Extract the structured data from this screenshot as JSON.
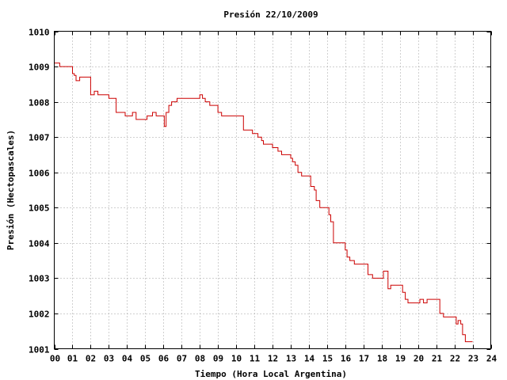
{
  "chart_data": {
    "type": "line",
    "title": "Presión 22/10/2009",
    "xlabel": "Tiempo (Hora Local Argentina)",
    "ylabel": "Presión (Hectopascales)",
    "xlim": [
      0,
      24
    ],
    "ylim": [
      1001,
      1010
    ],
    "x_tick_labels": [
      "00",
      "01",
      "02",
      "03",
      "04",
      "05",
      "06",
      "07",
      "08",
      "09",
      "10",
      "11",
      "12",
      "13",
      "14",
      "15",
      "16",
      "17",
      "18",
      "19",
      "20",
      "21",
      "22",
      "23",
      "24"
    ],
    "y_tick_labels": [
      "1001",
      "1002",
      "1003",
      "1004",
      "1005",
      "1006",
      "1007",
      "1008",
      "1009",
      "1010"
    ],
    "grid": true,
    "line_color": "#cc0000",
    "series": [
      {
        "step": true,
        "x": [
          0.0,
          0.3,
          0.4,
          0.9,
          1.0,
          1.1,
          1.2,
          1.4,
          1.5,
          2.0,
          2.2,
          2.4,
          2.5,
          3.0,
          3.4,
          3.9,
          4.3,
          4.5,
          5.0,
          5.1,
          5.4,
          5.6,
          5.75,
          6.05,
          6.15,
          6.3,
          6.45,
          6.75,
          7.4,
          8.0,
          8.15,
          8.3,
          8.55,
          9.0,
          9.2,
          9.45,
          10.0,
          10.4,
          10.9,
          11.2,
          11.4,
          11.5,
          12.0,
          12.3,
          12.5,
          13.0,
          13.1,
          13.25,
          13.4,
          13.6,
          14.0,
          14.1,
          14.3,
          14.4,
          14.6,
          15.0,
          15.1,
          15.2,
          15.35,
          15.6,
          16.0,
          16.1,
          16.25,
          16.5,
          17.0,
          17.25,
          17.5,
          18.1,
          18.35,
          18.5,
          19.0,
          19.15,
          19.3,
          19.45,
          19.6,
          20.0,
          20.1,
          20.3,
          20.5,
          21.0,
          21.2,
          21.4,
          21.55,
          22.0,
          22.1,
          22.2,
          22.35,
          22.45,
          22.6,
          23.0
        ],
        "y": [
          1009.1,
          1009.0,
          1009.0,
          1009.0,
          1008.8,
          1008.75,
          1008.6,
          1008.7,
          1008.7,
          1008.2,
          1008.3,
          1008.2,
          1008.2,
          1008.1,
          1007.7,
          1007.6,
          1007.7,
          1007.5,
          1007.5,
          1007.6,
          1007.7,
          1007.6,
          1007.6,
          1007.3,
          1007.7,
          1007.9,
          1008.0,
          1008.1,
          1008.1,
          1008.2,
          1008.1,
          1008.0,
          1007.9,
          1007.7,
          1007.6,
          1007.6,
          1007.6,
          1007.2,
          1007.1,
          1007.0,
          1006.9,
          1006.8,
          1006.7,
          1006.6,
          1006.5,
          1006.4,
          1006.3,
          1006.2,
          1006.0,
          1005.9,
          1005.9,
          1005.6,
          1005.5,
          1005.2,
          1005.0,
          1005.0,
          1004.8,
          1004.6,
          1004.0,
          1004.0,
          1003.8,
          1003.6,
          1003.5,
          1003.4,
          1003.4,
          1003.1,
          1003.0,
          1003.2,
          1002.7,
          1002.8,
          1002.8,
          1002.6,
          1002.4,
          1002.3,
          1002.3,
          1002.3,
          1002.4,
          1002.3,
          1002.4,
          1002.4,
          1002.0,
          1001.9,
          1001.9,
          1001.9,
          1001.7,
          1001.8,
          1001.7,
          1001.4,
          1001.2,
          1001.2
        ]
      }
    ]
  }
}
